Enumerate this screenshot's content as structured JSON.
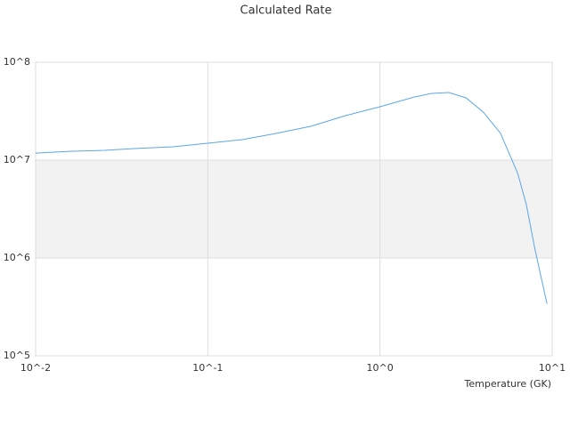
{
  "chart_data": {
    "type": "line",
    "title": "Calculated Rate",
    "x_label": "Temperature (GK)",
    "log_x": true,
    "log_y": true,
    "grid": true,
    "alternate_bands": true,
    "xlim": [
      0.01,
      10
    ],
    "ylim": [
      100000,
      100000000
    ],
    "xticks": [
      {
        "value": 0.01,
        "label": "10^-2"
      },
      {
        "value": 0.1,
        "label": "10^-1"
      },
      {
        "value": 1,
        "label": "10^0"
      },
      {
        "value": 10,
        "label": "10^1"
      }
    ],
    "yticks": [
      {
        "value": 100000,
        "label": "10^5"
      },
      {
        "value": 1000000,
        "label": "10^6"
      },
      {
        "value": 10000000,
        "label": "10^7"
      },
      {
        "value": 100000000,
        "label": "10^8"
      }
    ],
    "x": [
      0.01,
      0.0158,
      0.0251,
      0.0398,
      0.0631,
      0.1,
      0.158,
      0.251,
      0.398,
      0.631,
      1,
      1.585,
      2,
      2.51,
      3.16,
      3.98,
      5.01,
      6.31,
      7.08,
      7.94,
      9.33
    ],
    "series": [
      {
        "color": "#5ba7e8",
        "values": [
          11800000,
          12300000,
          12600000,
          13200000,
          13700000,
          14900000,
          16200000,
          18800000,
          22200000,
          28500000,
          35100000,
          44200000,
          48100000,
          49100000,
          43300000,
          31000000,
          18800000,
          7300000,
          3500000,
          1230000,
          340000
        ]
      }
    ]
  }
}
